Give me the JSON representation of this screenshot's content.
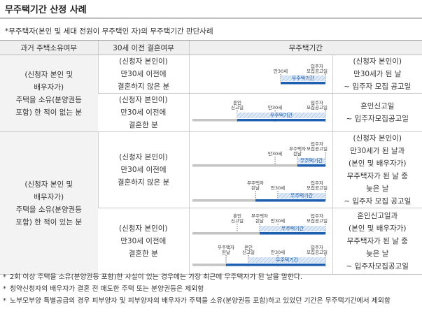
{
  "title": "무주택기간 산정 사례",
  "subtitle": "*무주택자(본인 및 세대 전원이 무주택인 자)의 무주택기간 판단사례",
  "headers": [
    "과거 주택소유여부",
    "30세 이전 결혼여부",
    "무주택기간"
  ],
  "groups": [
    {
      "label": "(신청자 본인 및\n배우자가)\n주택을 소유(분양권등\n포함) 한 적이 없는 분"
    },
    {
      "label": "(신청자 본인 및\n배우자가)\n주택을 소유(분양권등\n포함) 한 적이 있는 분"
    }
  ],
  "rows": [
    {
      "marriage": "(신청자 본인이)\n만30세 이전에\n결혼하지 않은 분",
      "result": "(신청자 본인이)\n만30세가 된 날\n~ 입주자 모집 공고일"
    },
    {
      "marriage": "(신청자 본인이)\n만30세 이전에\n결혼한 분",
      "result": "혼인신고일\n~ 입주자모집공고일"
    },
    {
      "marriage": "(신청자 본인이)\n만30세 이전에\n결혼하지 않은 분",
      "result": "(신청자 본인이)\n만30세가 된 날과\n(본인 및 배우자가)\n무주택자가 된 날 중\n늦은 날\n~ 입주자 모집 공고일"
    },
    {
      "marriage": "(신청자 본인이)\n만30세 이전에\n결혼한 분",
      "result": "혼인신고일과\n(본인 및 배우자가)\n무주택자가 된 날 중\n늦은 날\n~ 입주자모집공고일"
    }
  ],
  "graph_labels": {
    "age30": "만30세",
    "notice": "입주자\n모집공고일",
    "period": "무주택기간",
    "marriage": "혼인\n신고일",
    "homeless": "무주택자\n된날"
  },
  "notes": [
    "2회 이상 주택을 소유(분양권등 포함)한 사실이 있는 경우에는 가장 최근에 무주택자가 된 날을 말한다.",
    "청약신청자의 배우자가 결혼 전 매도한 주택 또는 분양권등은 제외함",
    "노부모부양 특별공급의 경우 피부양자 및 피부양자의 배우자가 주택을 소유(분양권등 포함)하고 있었던 기간은 무주택기간에서 제외함"
  ],
  "note_mark": "*",
  "colors": {
    "bar_blue": "#1f5fb0",
    "bar_gray": "#c4c4c4",
    "hatch_fill": "#dfeaf6",
    "header_bg": "#efefef"
  }
}
